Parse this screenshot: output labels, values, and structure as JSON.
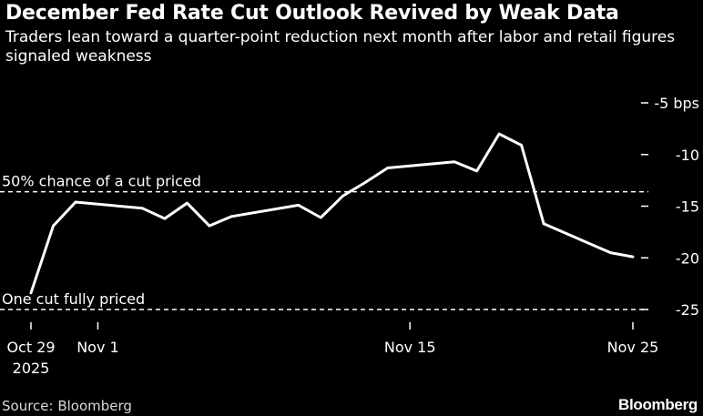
{
  "header": {
    "title": "December Fed Rate Cut Outlook Revived by Weak Data",
    "subtitle": "Traders lean toward a quarter-point reduction next month after labor and retail figures signaled weakness"
  },
  "footer": {
    "source": "Source: Bloomberg",
    "brand": "Bloomberg"
  },
  "chart_data": {
    "type": "line",
    "title": "December Fed Rate Cut Outlook Revived by Weak Data",
    "subtitle": "Traders lean toward a quarter-point reduction next month after labor and retail figures signaled weakness",
    "xlabel": "",
    "ylabel": "",
    "y_unit": "bps",
    "ylim": [
      -25,
      -5
    ],
    "yticks": [
      -5,
      -10,
      -15,
      -20,
      -25
    ],
    "ytick_labels": [
      "-5  bps",
      "-10",
      "-15",
      "-20",
      "-25"
    ],
    "xlim": [
      "2025-10-29",
      "2025-11-25"
    ],
    "xticks": [
      {
        "date": "2025-10-29",
        "label": "Oct 29",
        "sublabel": "2025"
      },
      {
        "date": "2025-11-01",
        "label": "Nov 1",
        "sublabel": ""
      },
      {
        "date": "2025-11-15",
        "label": "Nov 15",
        "sublabel": ""
      },
      {
        "date": "2025-11-25",
        "label": "Nov 25",
        "sublabel": ""
      }
    ],
    "grid": false,
    "series": [
      {
        "color": "#ffffff",
        "points": [
          {
            "x": "2025-10-29",
            "y": -23.4
          },
          {
            "x": "2025-10-30",
            "y": -16.9
          },
          {
            "x": "2025-10-31",
            "y": -14.6
          },
          {
            "x": "2025-11-03",
            "y": -15.2
          },
          {
            "x": "2025-11-04",
            "y": -16.2
          },
          {
            "x": "2025-11-05",
            "y": -14.7
          },
          {
            "x": "2025-11-06",
            "y": -16.9
          },
          {
            "x": "2025-11-07",
            "y": -16.0
          },
          {
            "x": "2025-11-10",
            "y": -14.9
          },
          {
            "x": "2025-11-11",
            "y": -16.1
          },
          {
            "x": "2025-11-12",
            "y": -14.0
          },
          {
            "x": "2025-11-13",
            "y": -12.7
          },
          {
            "x": "2025-11-14",
            "y": -11.3
          },
          {
            "x": "2025-11-17",
            "y": -10.7
          },
          {
            "x": "2025-11-18",
            "y": -11.6
          },
          {
            "x": "2025-11-19",
            "y": -8.0
          },
          {
            "x": "2025-11-20",
            "y": -9.1
          },
          {
            "x": "2025-11-21",
            "y": -16.7
          },
          {
            "x": "2025-11-24",
            "y": -19.5
          },
          {
            "x": "2025-11-25",
            "y": -19.9
          }
        ]
      }
    ],
    "reference_lines": [
      {
        "y": -13.6,
        "label": "50% chance of a cut priced",
        "style": "dashed"
      },
      {
        "y": -25.0,
        "label": "One cut fully priced",
        "style": "dashed"
      }
    ]
  }
}
